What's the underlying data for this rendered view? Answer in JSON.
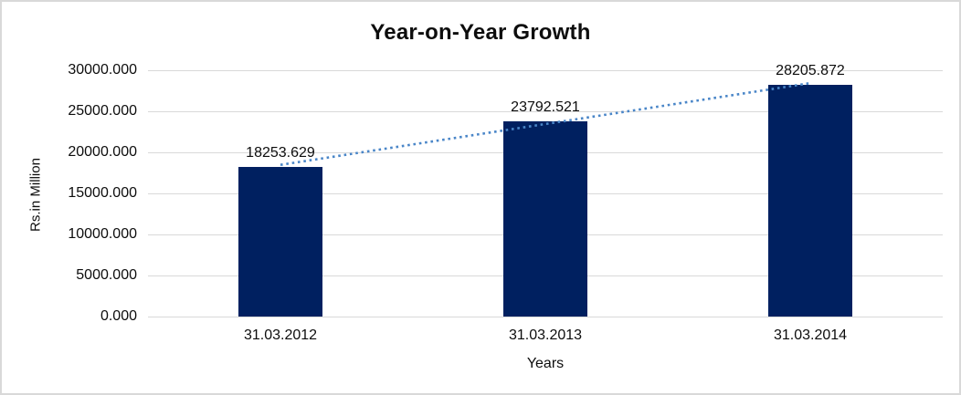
{
  "chart_data": {
    "type": "bar",
    "title": "Year-on-Year Growth",
    "categories": [
      "31.03.2012",
      "31.03.2013",
      "31.03.2014"
    ],
    "values": [
      18253.629,
      23792.521,
      28205.872
    ],
    "data_labels": [
      "18253.629",
      "23792.521",
      "28205.872"
    ],
    "xlabel": "Years",
    "ylabel": "Rs.in Million",
    "ylim": [
      0,
      30000
    ],
    "yticks": [
      0,
      5000,
      10000,
      15000,
      20000,
      25000,
      30000
    ],
    "ytick_labels": [
      "0.000",
      "5000.000",
      "10000.000",
      "15000.000",
      "20000.000",
      "25000.000",
      "30000.000"
    ],
    "grid": true,
    "legend": false,
    "trendline": {
      "type": "linear",
      "style": "dotted",
      "color": "#4a86c8"
    },
    "colors": {
      "bar": "#002060",
      "gridline": "#d9d9d9",
      "border": "#d9d9d9",
      "text": "#0d0d0d",
      "background": "#ffffff"
    }
  }
}
